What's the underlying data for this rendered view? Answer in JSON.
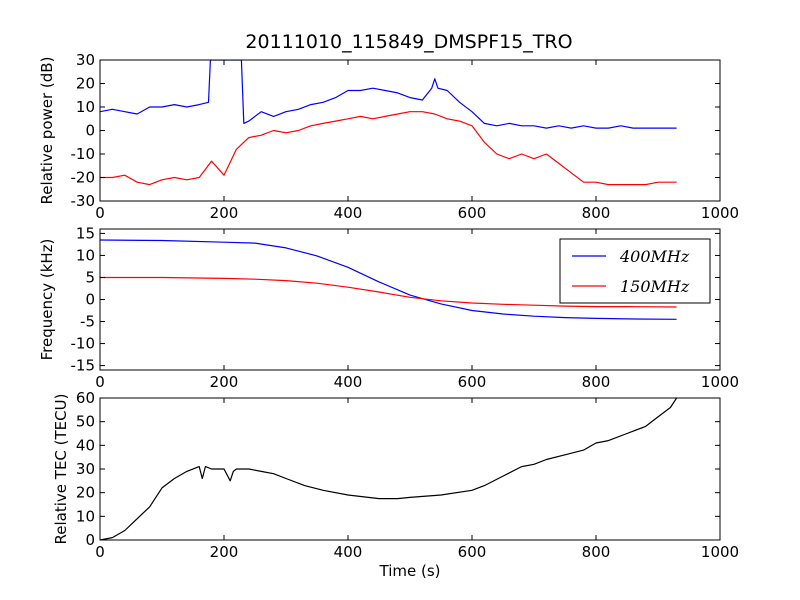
{
  "figure": {
    "title": "20111010_115849_DMSPF15_TRO"
  },
  "chart_data": [
    {
      "type": "line",
      "ylabel": "Relative power (dB)",
      "xlabel": "",
      "xlim": [
        0,
        1000
      ],
      "ylim": [
        -30,
        30
      ],
      "xticks": [
        "0",
        "200",
        "400",
        "600",
        "800",
        "1000"
      ],
      "yticks": [
        "30",
        "20",
        "10",
        "0",
        "-10",
        "-20",
        "-30"
      ],
      "grid": false,
      "series": [
        {
          "color": "#0000ff",
          "x": [
            0,
            20,
            40,
            60,
            80,
            100,
            120,
            140,
            160,
            175,
            178,
            180,
            200,
            225,
            228,
            232,
            240,
            260,
            280,
            300,
            320,
            340,
            360,
            380,
            400,
            420,
            440,
            460,
            480,
            500,
            520,
            535,
            540,
            545,
            560,
            580,
            600,
            620,
            640,
            660,
            680,
            700,
            720,
            740,
            760,
            780,
            800,
            820,
            840,
            860,
            880,
            900,
            930
          ],
          "y": [
            8,
            9,
            8,
            7,
            10,
            10,
            11,
            10,
            11,
            12,
            30,
            30,
            30,
            30,
            30,
            3,
            4,
            8,
            6,
            8,
            9,
            11,
            12,
            14,
            17,
            17,
            18,
            17,
            16,
            14,
            13,
            18,
            22,
            18,
            17,
            12,
            8,
            3,
            2,
            3,
            2,
            2,
            1,
            2,
            1,
            2,
            1,
            1,
            2,
            1,
            1,
            1,
            1
          ]
        },
        {
          "color": "#ff0000",
          "x": [
            0,
            20,
            40,
            60,
            80,
            100,
            120,
            140,
            160,
            180,
            200,
            220,
            240,
            260,
            280,
            300,
            320,
            340,
            360,
            380,
            400,
            420,
            440,
            460,
            480,
            500,
            520,
            540,
            560,
            580,
            600,
            620,
            640,
            660,
            680,
            700,
            720,
            740,
            760,
            780,
            800,
            820,
            840,
            860,
            880,
            900,
            930
          ],
          "y": [
            -20,
            -20,
            -19,
            -22,
            -23,
            -21,
            -20,
            -21,
            -20,
            -13,
            -19,
            -8,
            -3,
            -2,
            0,
            -1,
            0,
            2,
            3,
            4,
            5,
            6,
            5,
            6,
            7,
            8,
            8,
            7,
            5,
            4,
            2,
            -5,
            -10,
            -12,
            -10,
            -12,
            -10,
            -14,
            -18,
            -22,
            -22,
            -23,
            -23,
            -23,
            -23,
            -22,
            -22
          ]
        }
      ]
    },
    {
      "type": "line",
      "ylabel": "Frequency (kHz)",
      "xlabel": "",
      "xlim": [
        0,
        1000
      ],
      "ylim": [
        -16,
        16
      ],
      "xticks": [
        "0",
        "200",
        "400",
        "600",
        "800",
        "1000"
      ],
      "yticks": [
        "15",
        "10",
        "5",
        "0",
        "-5",
        "-10",
        "-15"
      ],
      "grid": false,
      "legend_position": "top-right",
      "series": [
        {
          "name": "400MHz",
          "color": "#0000ff",
          "x": [
            0,
            100,
            200,
            250,
            300,
            350,
            400,
            450,
            500,
            550,
            600,
            650,
            700,
            750,
            800,
            850,
            930
          ],
          "y": [
            13.5,
            13.4,
            13.0,
            12.8,
            11.7,
            9.9,
            7.3,
            4.0,
            1.0,
            -1.0,
            -2.5,
            -3.3,
            -3.8,
            -4.1,
            -4.3,
            -4.4,
            -4.5
          ]
        },
        {
          "name": "150MHz",
          "color": "#ff0000",
          "x": [
            0,
            100,
            200,
            250,
            300,
            350,
            400,
            450,
            500,
            550,
            600,
            650,
            700,
            750,
            800,
            850,
            930
          ],
          "y": [
            5.0,
            5.0,
            4.8,
            4.6,
            4.3,
            3.7,
            2.8,
            1.7,
            0.5,
            -0.3,
            -0.8,
            -1.1,
            -1.3,
            -1.5,
            -1.6,
            -1.6,
            -1.7
          ]
        }
      ]
    },
    {
      "type": "line",
      "ylabel": "Relative TEC (TECU)",
      "xlabel": "Time (s)",
      "xlim": [
        0,
        1000
      ],
      "ylim": [
        0,
        60
      ],
      "xticks": [
        "0",
        "200",
        "400",
        "600",
        "800",
        "1000"
      ],
      "yticks": [
        "60",
        "50",
        "40",
        "30",
        "20",
        "10",
        "0"
      ],
      "grid": false,
      "series": [
        {
          "color": "#000000",
          "x": [
            0,
            20,
            40,
            60,
            80,
            100,
            120,
            140,
            160,
            165,
            170,
            180,
            200,
            210,
            215,
            220,
            240,
            260,
            280,
            300,
            330,
            360,
            400,
            450,
            480,
            500,
            550,
            600,
            620,
            650,
            680,
            700,
            720,
            750,
            780,
            800,
            820,
            850,
            880,
            900,
            920,
            930
          ],
          "y": [
            0,
            1,
            4,
            9,
            14,
            22,
            26,
            29,
            31,
            26,
            31,
            30,
            30,
            25,
            29,
            30,
            30,
            29,
            28,
            26,
            23,
            21,
            19,
            17.5,
            17.5,
            18,
            19,
            21,
            23,
            27,
            31,
            32,
            34,
            36,
            38,
            41,
            42,
            45,
            48,
            52,
            56,
            60
          ]
        }
      ]
    }
  ]
}
